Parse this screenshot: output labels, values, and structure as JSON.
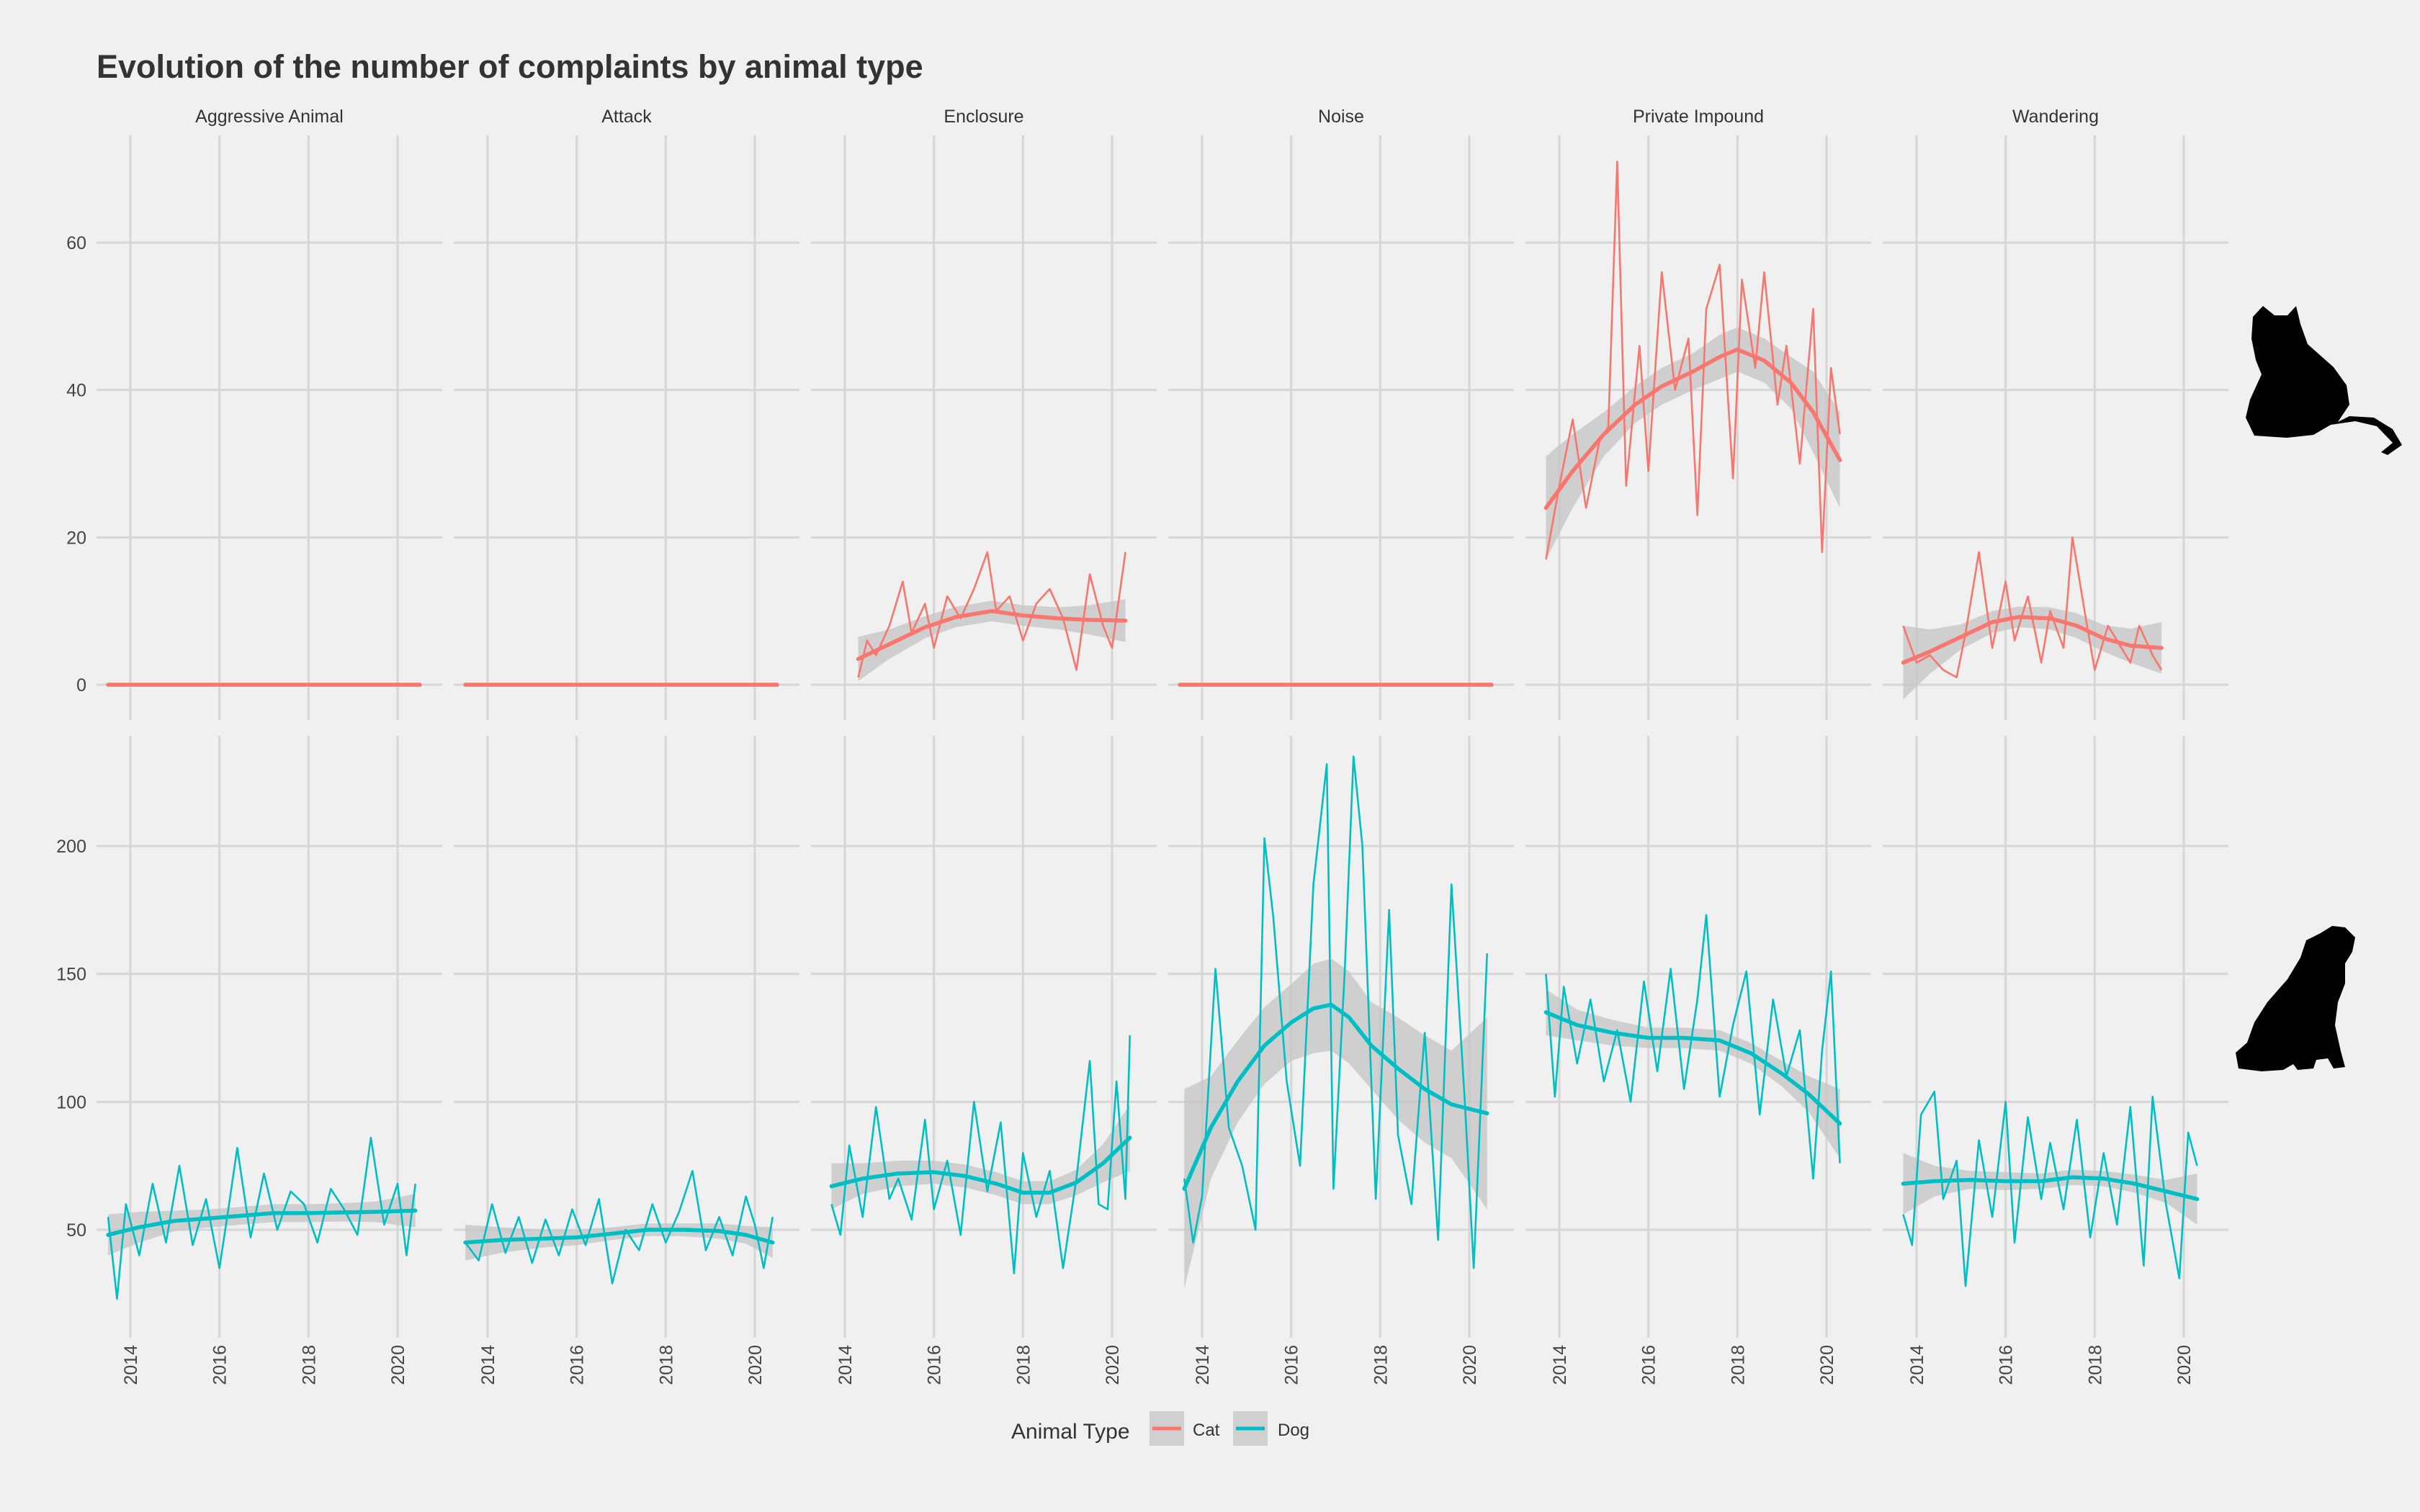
{
  "chart_data": {
    "type": "line",
    "title": "Evolution of the number of complaints by animal type",
    "facets": [
      "Aggressive Animal",
      "Attack",
      "Enclosure",
      "Noise",
      "Private Impound",
      "Wandering"
    ],
    "rows": [
      {
        "animal": "Cat",
        "y_ticks": [
          0,
          20,
          40,
          60
        ],
        "ylim": [
          -4,
          75
        ]
      },
      {
        "animal": "Dog",
        "y_ticks": [
          50,
          100,
          150,
          200
        ],
        "ylim": [
          20,
          240
        ]
      }
    ],
    "x_ticks": [
      2014,
      2016,
      2018,
      2020
    ],
    "xlim": [
      2013.2,
      2020.9
    ],
    "legend": {
      "title": "Animal Type",
      "position": "bottom",
      "items": [
        {
          "name": "Cat",
          "color": "#f8766d"
        },
        {
          "name": "Dog",
          "color": "#00bfc4"
        }
      ]
    },
    "grid": true,
    "smoother": "loess with confidence band",
    "series": [
      {
        "animal": "Cat",
        "facet": "Aggressive Animal",
        "x": [
          2013.5,
          2020.5
        ],
        "values": [
          0,
          0
        ],
        "trend_x": [
          2013.5,
          2020.5
        ],
        "trend": [
          0,
          0
        ],
        "band_low": [
          0,
          0
        ],
        "band_high": [
          0,
          0
        ]
      },
      {
        "animal": "Cat",
        "facet": "Attack",
        "x": [
          2013.5,
          2020.5
        ],
        "values": [
          0,
          0
        ],
        "trend_x": [
          2013.5,
          2020.5
        ],
        "trend": [
          0,
          0
        ],
        "band_low": [
          0,
          0
        ],
        "band_high": [
          0,
          0
        ]
      },
      {
        "animal": "Cat",
        "facet": "Enclosure",
        "x": [
          2014.3,
          2014.5,
          2014.7,
          2015.0,
          2015.3,
          2015.5,
          2015.8,
          2016.0,
          2016.3,
          2016.6,
          2016.9,
          2017.2,
          2017.4,
          2017.7,
          2018.0,
          2018.3,
          2018.6,
          2018.9,
          2019.2,
          2019.5,
          2019.8,
          2020.0,
          2020.3
        ],
        "values": [
          1,
          6,
          4,
          8,
          14,
          7,
          11,
          5,
          12,
          9,
          13,
          18,
          10,
          12,
          6,
          11,
          13,
          9,
          2,
          15,
          8,
          5,
          18
        ],
        "trend_x": [
          2014.3,
          2015.0,
          2015.8,
          2016.5,
          2017.3,
          2018.0,
          2018.8,
          2019.5,
          2020.3
        ],
        "trend": [
          3.5,
          5.5,
          7.8,
          9.2,
          10.0,
          9.4,
          9.0,
          8.8,
          8.7
        ],
        "band_low": [
          0.5,
          3.5,
          6.3,
          7.8,
          8.6,
          8.0,
          7.5,
          6.8,
          5.8
        ],
        "band_high": [
          6.5,
          7.5,
          9.3,
          10.6,
          11.4,
          10.8,
          10.5,
          10.8,
          11.6
        ]
      },
      {
        "animal": "Cat",
        "facet": "Noise",
        "x": [
          2013.5,
          2020.5
        ],
        "values": [
          0,
          0
        ],
        "trend_x": [
          2013.5,
          2020.5
        ],
        "trend": [
          0,
          0
        ],
        "band_low": [
          0,
          0
        ],
        "band_high": [
          0,
          0
        ]
      },
      {
        "animal": "Cat",
        "facet": "Private Impound",
        "x": [
          2013.7,
          2014.0,
          2014.3,
          2014.6,
          2014.9,
          2015.1,
          2015.3,
          2015.5,
          2015.8,
          2016.0,
          2016.3,
          2016.6,
          2016.9,
          2017.1,
          2017.3,
          2017.6,
          2017.9,
          2018.1,
          2018.4,
          2018.6,
          2018.9,
          2019.1,
          2019.4,
          2019.7,
          2019.9,
          2020.1,
          2020.3
        ],
        "values": [
          17,
          27,
          36,
          24,
          33,
          35,
          71,
          27,
          46,
          29,
          56,
          40,
          47,
          23,
          51,
          57,
          28,
          55,
          43,
          56,
          38,
          46,
          30,
          51,
          18,
          43,
          34
        ],
        "trend_x": [
          2013.7,
          2014.3,
          2015.0,
          2015.7,
          2016.3,
          2017.0,
          2017.6,
          2018.0,
          2018.6,
          2019.2,
          2019.7,
          2020.3
        ],
        "trend": [
          24,
          29,
          34,
          38,
          40.5,
          42.5,
          44.5,
          45.5,
          44,
          41,
          37,
          30.5
        ],
        "band_low": [
          17,
          24,
          31,
          35.5,
          38,
          40,
          41.5,
          42.5,
          41,
          37.5,
          31.5,
          24
        ],
        "band_high": [
          31,
          34,
          37,
          40.5,
          43,
          45,
          47.5,
          48.5,
          47,
          44.5,
          42.5,
          37
        ]
      },
      {
        "animal": "Cat",
        "facet": "Wandering",
        "x": [
          2013.7,
          2014.0,
          2014.3,
          2014.6,
          2014.9,
          2015.1,
          2015.4,
          2015.7,
          2016.0,
          2016.2,
          2016.5,
          2016.8,
          2017.0,
          2017.3,
          2017.5,
          2017.8,
          2018.0,
          2018.3,
          2018.5,
          2018.8,
          2019.0,
          2019.3,
          2019.5
        ],
        "values": [
          8,
          3,
          4,
          2,
          1,
          7,
          18,
          5,
          14,
          6,
          12,
          3,
          10,
          5,
          20,
          9,
          2,
          8,
          6,
          3,
          8,
          4,
          2
        ],
        "trend_x": [
          2013.7,
          2014.3,
          2015.0,
          2015.7,
          2016.3,
          2017.0,
          2017.6,
          2018.2,
          2018.8,
          2019.5
        ],
        "trend": [
          3,
          4.5,
          6.5,
          8.5,
          9.2,
          9.0,
          8.0,
          6.3,
          5.3,
          5.0
        ],
        "band_low": [
          -2,
          1.5,
          4.8,
          7.0,
          7.8,
          7.5,
          6.3,
          4.5,
          3.0,
          1.5
        ],
        "band_high": [
          8,
          7.5,
          8.2,
          10.0,
          10.6,
          10.5,
          9.7,
          8.1,
          7.6,
          8.5
        ]
      },
      {
        "animal": "Dog",
        "facet": "Aggressive Animal",
        "x": [
          2013.5,
          2013.7,
          2013.9,
          2014.2,
          2014.5,
          2014.8,
          2015.1,
          2015.4,
          2015.7,
          2016.0,
          2016.2,
          2016.4,
          2016.7,
          2017.0,
          2017.3,
          2017.6,
          2017.9,
          2018.2,
          2018.5,
          2018.8,
          2019.1,
          2019.4,
          2019.7,
          2020.0,
          2020.2,
          2020.4
        ],
        "values": [
          55,
          23,
          60,
          40,
          68,
          45,
          75,
          44,
          62,
          35,
          58,
          82,
          47,
          72,
          50,
          65,
          60,
          45,
          66,
          58,
          48,
          86,
          52,
          68,
          40,
          68
        ],
        "trend_x": [
          2013.5,
          2014.2,
          2015.0,
          2015.8,
          2016.5,
          2017.2,
          2018.0,
          2018.8,
          2019.5,
          2020.4
        ],
        "trend": [
          48,
          51,
          53.5,
          54.5,
          55.5,
          56.5,
          56.5,
          56.8,
          57,
          57.5
        ],
        "band_low": [
          40,
          45,
          49.5,
          51,
          52,
          53,
          53,
          53.2,
          53,
          51
        ],
        "band_high": [
          56,
          57,
          57.5,
          58,
          59,
          60,
          60,
          60.4,
          61,
          64
        ]
      },
      {
        "animal": "Dog",
        "facet": "Attack",
        "x": [
          2013.5,
          2013.8,
          2014.1,
          2014.4,
          2014.7,
          2015.0,
          2015.3,
          2015.6,
          2015.9,
          2016.2,
          2016.5,
          2016.8,
          2017.1,
          2017.4,
          2017.7,
          2018.0,
          2018.3,
          2018.6,
          2018.9,
          2019.2,
          2019.5,
          2019.8,
          2020.0,
          2020.2,
          2020.4
        ],
        "values": [
          45,
          38,
          60,
          41,
          55,
          37,
          54,
          40,
          58,
          44,
          62,
          29,
          50,
          42,
          60,
          45,
          57,
          73,
          42,
          55,
          40,
          63,
          52,
          35,
          55
        ],
        "trend_x": [
          2013.5,
          2014.3,
          2015.2,
          2016.0,
          2016.8,
          2017.6,
          2018.4,
          2019.2,
          2019.8,
          2020.4
        ],
        "trend": [
          45,
          46,
          46.5,
          47,
          48.5,
          50,
          50,
          49.5,
          48,
          45
        ],
        "band_low": [
          38,
          41,
          43,
          44,
          46,
          47.5,
          47.5,
          46.5,
          44.5,
          39
        ],
        "band_high": [
          52,
          51,
          50,
          50,
          51,
          52.5,
          52.5,
          52.5,
          51.5,
          51
        ]
      },
      {
        "animal": "Dog",
        "facet": "Enclosure",
        "x": [
          2013.7,
          2013.9,
          2014.1,
          2014.4,
          2014.7,
          2015.0,
          2015.2,
          2015.5,
          2015.8,
          2016.0,
          2016.3,
          2016.6,
          2016.9,
          2017.2,
          2017.5,
          2017.8,
          2018.0,
          2018.3,
          2018.6,
          2018.9,
          2019.2,
          2019.5,
          2019.7,
          2019.9,
          2020.1,
          2020.3,
          2020.4
        ],
        "values": [
          60,
          48,
          83,
          55,
          98,
          62,
          70,
          54,
          93,
          58,
          77,
          48,
          100,
          65,
          92,
          33,
          80,
          55,
          73,
          35,
          70,
          116,
          60,
          58,
          108,
          62,
          126
        ],
        "trend_x": [
          2013.7,
          2014.4,
          2015.2,
          2016.0,
          2016.7,
          2017.4,
          2018.0,
          2018.6,
          2019.2,
          2019.8,
          2020.4
        ],
        "trend": [
          67,
          70,
          72,
          72.5,
          71,
          68,
          64.5,
          64.5,
          68.5,
          76,
          86
        ],
        "band_low": [
          58,
          64,
          67,
          68,
          66.5,
          63.5,
          60,
          60,
          63.5,
          68.5,
          73
        ],
        "band_high": [
          76,
          76,
          77,
          77,
          75.5,
          72.5,
          69,
          69,
          73.5,
          83.5,
          99
        ]
      },
      {
        "animal": "Dog",
        "facet": "Noise",
        "x": [
          2013.6,
          2013.8,
          2014.0,
          2014.3,
          2014.6,
          2014.9,
          2015.2,
          2015.4,
          2015.6,
          2015.9,
          2016.2,
          2016.5,
          2016.8,
          2016.95,
          2017.2,
          2017.4,
          2017.6,
          2017.9,
          2018.2,
          2018.4,
          2018.7,
          2019.0,
          2019.3,
          2019.6,
          2019.9,
          2020.1,
          2020.4
        ],
        "values": [
          70,
          45,
          63,
          152,
          90,
          75,
          50,
          203,
          172,
          108,
          75,
          185,
          232,
          66,
          150,
          235,
          200,
          62,
          175,
          87,
          60,
          127,
          46,
          185,
          100,
          35,
          158
        ],
        "trend_x": [
          2013.6,
          2014.2,
          2014.8,
          2015.4,
          2016.0,
          2016.5,
          2016.9,
          2017.3,
          2017.8,
          2018.4,
          2019.0,
          2019.6,
          2020.4
        ],
        "trend": [
          66,
          90,
          108,
          122,
          131,
          136.5,
          138,
          133,
          122,
          113,
          105,
          99,
          95.5
        ],
        "band_low": [
          27,
          70,
          92,
          107,
          116,
          119,
          120,
          115,
          105,
          93,
          84,
          78,
          58
        ],
        "band_high": [
          105,
          110,
          124,
          137,
          146,
          154,
          156,
          151,
          139,
          133,
          126,
          120,
          133
        ]
      },
      {
        "animal": "Dog",
        "facet": "Private Impound",
        "x": [
          2013.7,
          2013.9,
          2014.1,
          2014.4,
          2014.7,
          2015.0,
          2015.3,
          2015.6,
          2015.9,
          2016.2,
          2016.5,
          2016.8,
          2017.1,
          2017.3,
          2017.6,
          2017.9,
          2018.2,
          2018.5,
          2018.8,
          2019.1,
          2019.4,
          2019.7,
          2019.9,
          2020.1,
          2020.3
        ],
        "values": [
          150,
          102,
          145,
          115,
          140,
          108,
          128,
          100,
          147,
          112,
          152,
          105,
          140,
          173,
          102,
          130,
          151,
          95,
          140,
          110,
          128,
          70,
          120,
          151,
          76
        ],
        "trend_x": [
          2013.7,
          2014.4,
          2015.2,
          2016.0,
          2016.8,
          2017.6,
          2018.3,
          2019.0,
          2019.6,
          2020.3
        ],
        "trend": [
          135,
          130,
          127,
          125,
          125,
          124,
          119,
          111,
          103,
          91.5
        ],
        "band_low": [
          126,
          124,
          122,
          121,
          121,
          120,
          115,
          106,
          96,
          78
        ],
        "band_high": [
          144,
          136,
          132,
          129,
          129,
          128,
          123,
          116,
          110,
          105
        ]
      },
      {
        "animal": "Dog",
        "facet": "Wandering",
        "x": [
          2013.7,
          2013.9,
          2014.1,
          2014.4,
          2014.6,
          2014.9,
          2015.1,
          2015.4,
          2015.7,
          2016.0,
          2016.2,
          2016.5,
          2016.8,
          2017.0,
          2017.3,
          2017.6,
          2017.9,
          2018.2,
          2018.5,
          2018.8,
          2019.1,
          2019.3,
          2019.6,
          2019.9,
          2020.1,
          2020.3
        ],
        "values": [
          56,
          44,
          95,
          104,
          62,
          77,
          28,
          85,
          55,
          100,
          45,
          94,
          62,
          84,
          58,
          93,
          47,
          80,
          52,
          98,
          36,
          102,
          60,
          31,
          88,
          75
        ],
        "trend_x": [
          2013.7,
          2014.4,
          2015.2,
          2016.0,
          2016.8,
          2017.5,
          2018.2,
          2018.9,
          2019.6,
          2020.3
        ],
        "trend": [
          68,
          69,
          69.5,
          69,
          69,
          70.5,
          70,
          68,
          65,
          62
        ],
        "band_low": [
          56,
          63,
          66,
          65.5,
          66,
          67.5,
          67,
          64.5,
          60.5,
          52
        ],
        "band_high": [
          80,
          75,
          73,
          72.5,
          72,
          73.5,
          73,
          71.5,
          69.5,
          72
        ]
      }
    ]
  },
  "icons": {
    "cat": "cat-silhouette-icon",
    "dog": "dog-silhouette-icon"
  }
}
